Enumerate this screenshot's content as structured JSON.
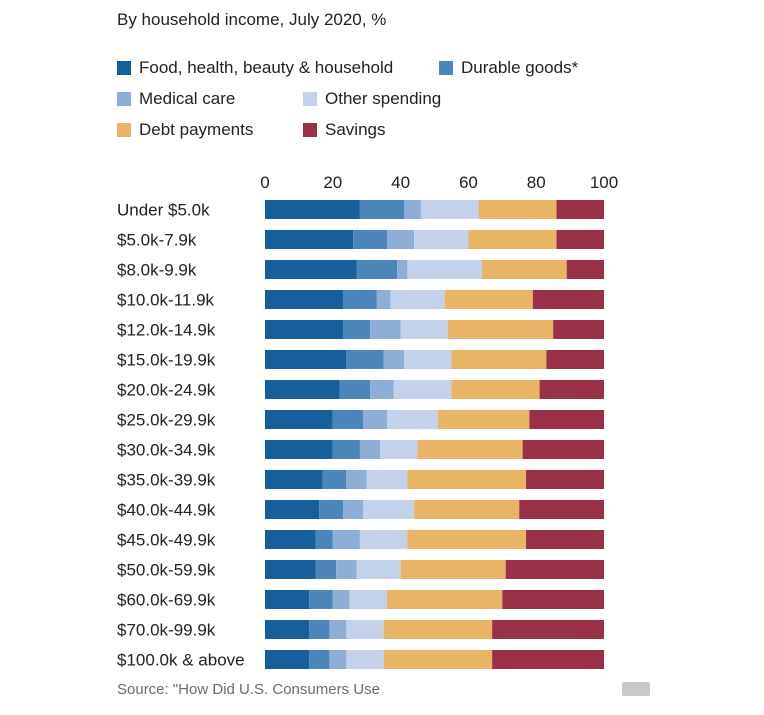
{
  "subtitle": "By household income, July 2020, %",
  "source": "Source: \"How Did U.S. Consumers Use",
  "colors": {
    "food": "#175f9b",
    "durable": "#4b85b9",
    "medical": "#8eaed6",
    "other": "#c3d1ea",
    "debt": "#e8b466",
    "savings": "#9b3149"
  },
  "chart_data": {
    "type": "bar",
    "orientation": "horizontal",
    "stacked": true,
    "title": "By household income, July 2020, %",
    "xlim": [
      0,
      100
    ],
    "xticks": [
      0,
      20,
      40,
      60,
      80,
      100
    ],
    "legend_position": "top",
    "categories": [
      "Under $5.0k",
      "$5.0k-7.9k",
      "$8.0k-9.9k",
      "$10.0k-11.9k",
      "$12.0k-14.9k",
      "$15.0k-19.9k",
      "$20.0k-24.9k",
      "$25.0k-29.9k",
      "$30.0k-34.9k",
      "$35.0k-39.9k",
      "$40.0k-44.9k",
      "$45.0k-49.9k",
      "$50.0k-59.9k",
      "$60.0k-69.9k",
      "$70.0k-99.9k",
      "$100.0k & above"
    ],
    "series": [
      {
        "name": "Food, health, beauty & household",
        "color": "#175f9b",
        "values": [
          28,
          26,
          27,
          23,
          23,
          24,
          22,
          20,
          20,
          17,
          16,
          15,
          15,
          13,
          13,
          13
        ]
      },
      {
        "name": "Durable goods*",
        "color": "#4b85b9",
        "values": [
          13,
          10,
          12,
          10,
          8,
          11,
          9,
          9,
          8,
          7,
          7,
          5,
          6,
          7,
          6,
          6
        ]
      },
      {
        "name": "Medical care",
        "color": "#8eaed6",
        "values": [
          5,
          8,
          3,
          4,
          9,
          6,
          7,
          7,
          6,
          6,
          6,
          8,
          6,
          5,
          5,
          5
        ]
      },
      {
        "name": "Other spending",
        "color": "#c3d1ea",
        "values": [
          17,
          16,
          22,
          16,
          14,
          14,
          17,
          15,
          11,
          12,
          15,
          14,
          13,
          11,
          11,
          11
        ]
      },
      {
        "name": "Debt payments",
        "color": "#e8b466",
        "values": [
          23,
          26,
          25,
          26,
          31,
          28,
          26,
          27,
          31,
          35,
          31,
          35,
          31,
          34,
          32,
          32
        ]
      },
      {
        "name": "Savings",
        "color": "#9b3149",
        "values": [
          14,
          14,
          11,
          21,
          15,
          17,
          19,
          22,
          24,
          23,
          25,
          23,
          29,
          30,
          33,
          33
        ]
      }
    ]
  }
}
